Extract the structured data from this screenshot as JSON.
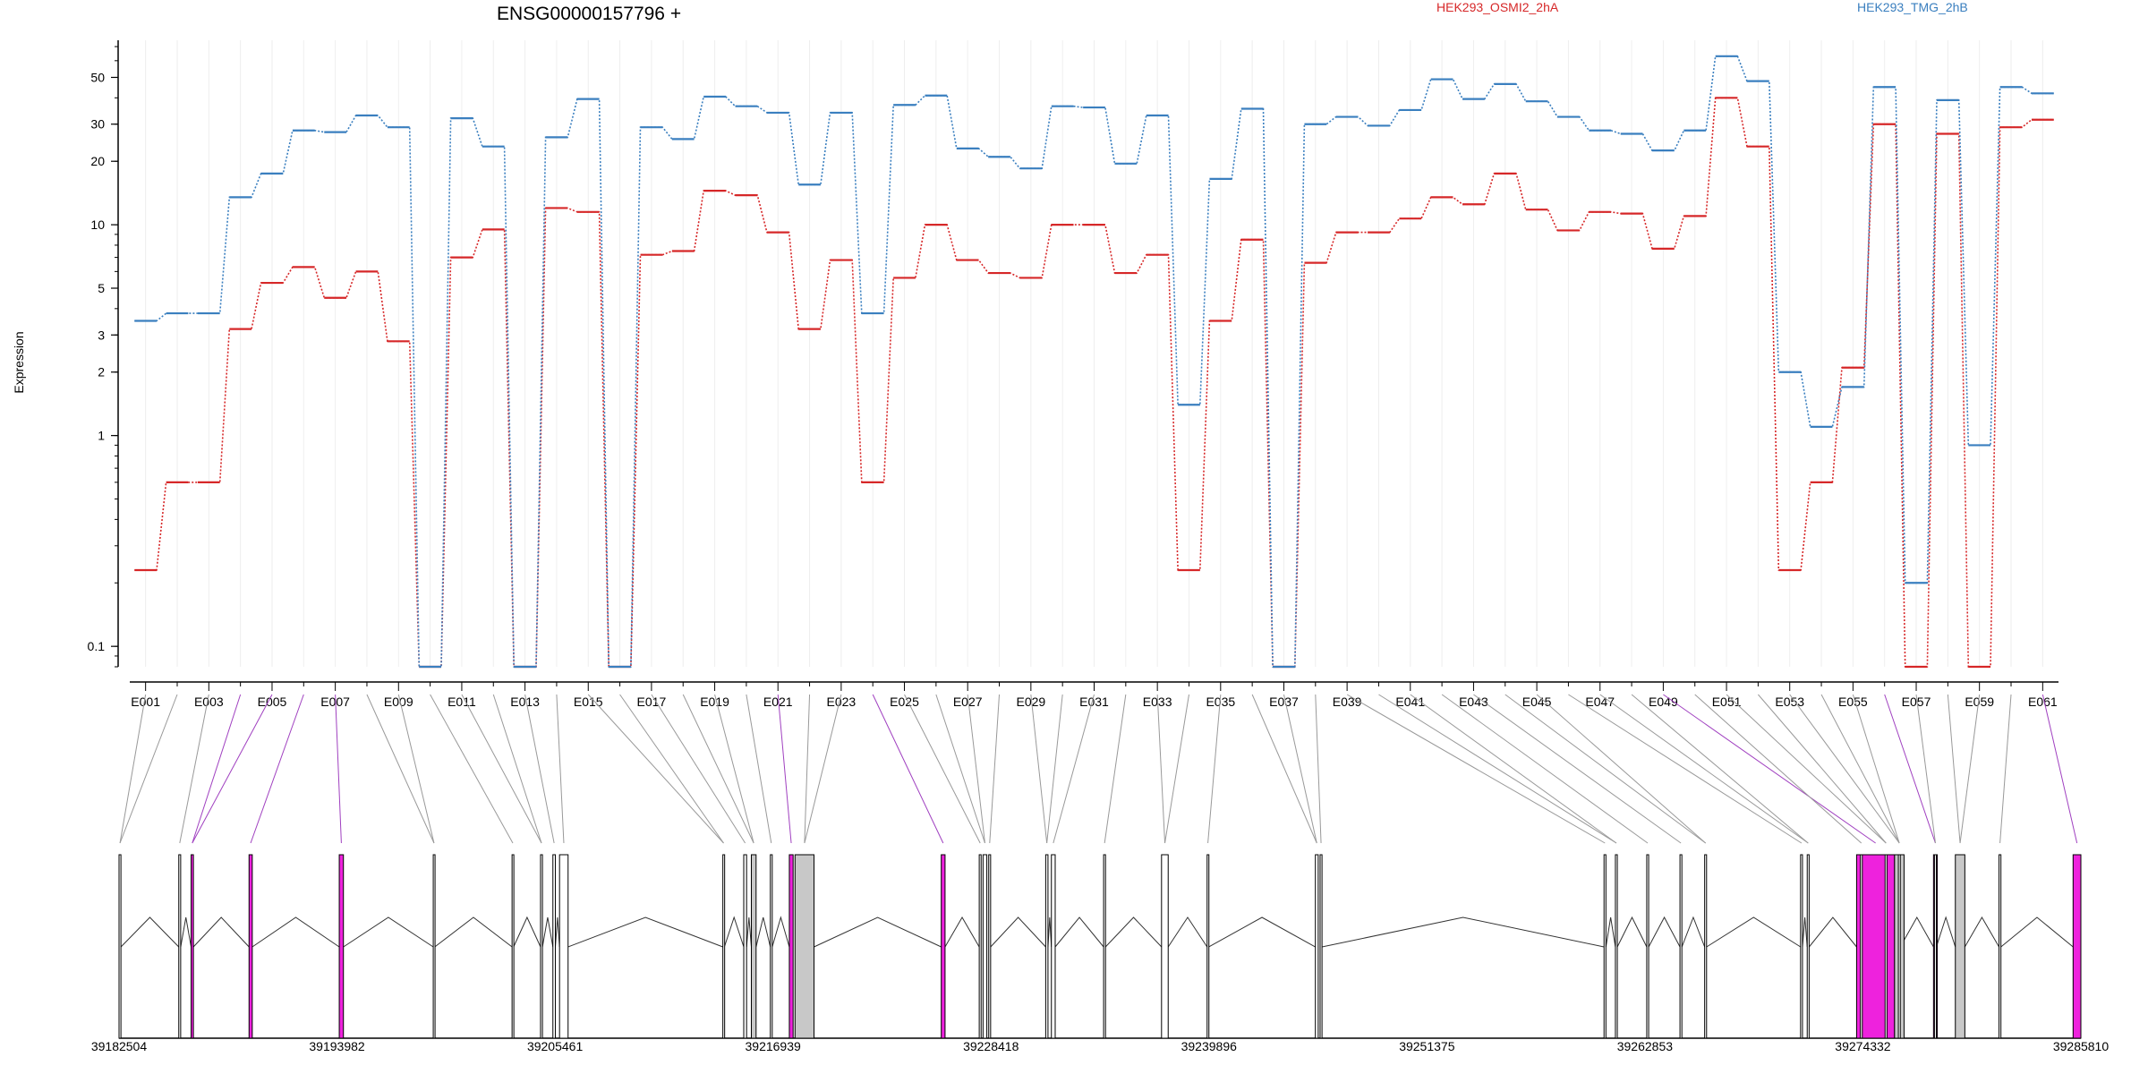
{
  "title": "ENSG00000157796 +",
  "ylabel": "Expression",
  "legend": [
    {
      "name": "HEK293_OSMI2_2hA",
      "color": "#d62728"
    },
    {
      "name": "HEK293_TMG_2hB",
      "color": "#3a7fbf"
    }
  ],
  "colors": {
    "exon_plain": "#ffffff",
    "exon_gray": "#c8c8c8",
    "exon_magenta": "#ee22dd",
    "connector_gray": "#999999",
    "connector_magenta": "#a040c0"
  },
  "chart_data": {
    "type": "line",
    "yscale": "log",
    "ylim": [
      0.08,
      75
    ],
    "yticks": [
      0.1,
      1,
      2,
      3,
      5,
      10,
      20,
      30,
      50
    ],
    "ytick_labels": [
      "0.1",
      "1",
      "2",
      "3",
      "5",
      "10",
      "20",
      "30",
      "50"
    ],
    "grid": "vertical-light",
    "legend_position": "top",
    "categories": [
      "E001",
      "E002",
      "E003",
      "E004",
      "E005",
      "E006",
      "E007",
      "E008",
      "E009",
      "E010",
      "E011",
      "E012",
      "E013",
      "E014",
      "E015",
      "E016",
      "E017",
      "E018",
      "E019",
      "E020",
      "E021",
      "E022",
      "E023",
      "E024",
      "E025",
      "E026",
      "E027",
      "E028",
      "E029",
      "E030",
      "E031",
      "E032",
      "E033",
      "E034",
      "E035",
      "E036",
      "E037",
      "E038",
      "E039",
      "E040",
      "E041",
      "E042",
      "E043",
      "E044",
      "E045",
      "E046",
      "E047",
      "E048",
      "E049",
      "E050",
      "E051",
      "E052",
      "E053",
      "E054",
      "E055",
      "E056",
      "E057",
      "E058",
      "E059",
      "E060",
      "E061"
    ],
    "tick_labels": [
      "E001",
      "E003",
      "E005",
      "E007",
      "E009",
      "E011",
      "E013",
      "E015",
      "E017",
      "E019",
      "E021",
      "E023",
      "E025",
      "E027",
      "E029",
      "E031",
      "E033",
      "E035",
      "E037",
      "E039",
      "E041",
      "E043",
      "E045",
      "E047",
      "E049",
      "E051",
      "E053",
      "E055",
      "E057",
      "E059",
      "E061"
    ],
    "series": [
      {
        "name": "HEK293_OSMI2_2hA",
        "color": "#d62728",
        "values": [
          0.23,
          0.6,
          0.6,
          3.2,
          5.3,
          6.3,
          4.5,
          6.0,
          2.8,
          0.08,
          7.0,
          9.5,
          0.08,
          12.0,
          11.5,
          0.08,
          7.2,
          7.5,
          14.5,
          13.8,
          9.2,
          3.2,
          6.8,
          0.6,
          5.6,
          10.0,
          6.8,
          5.9,
          5.6,
          10.0,
          10.0,
          5.9,
          7.2,
          0.23,
          3.5,
          8.5,
          0.08,
          6.6,
          9.2,
          9.2,
          10.7,
          13.5,
          12.5,
          17.5,
          11.8,
          9.4,
          11.5,
          11.3,
          7.7,
          11.0,
          40.0,
          23.5,
          0.23,
          0.6,
          2.1,
          30.0,
          0.08,
          27.0,
          0.08,
          29.0,
          31.5
        ]
      },
      {
        "name": "HEK293_TMG_2hB",
        "color": "#3a7fbf",
        "values": [
          3.5,
          3.8,
          3.8,
          13.5,
          17.5,
          28.0,
          27.5,
          33.0,
          29.0,
          0.08,
          32.0,
          23.5,
          0.08,
          26.0,
          39.5,
          0.08,
          29.0,
          25.5,
          40.5,
          36.5,
          34.0,
          15.5,
          34.0,
          3.8,
          37.0,
          41.0,
          23.0,
          21.0,
          18.5,
          36.5,
          36.0,
          19.5,
          33.0,
          1.4,
          16.5,
          35.5,
          0.08,
          30.0,
          32.5,
          29.5,
          35.0,
          49.0,
          39.5,
          46.5,
          38.5,
          32.5,
          28.0,
          27.0,
          22.5,
          28.0,
          63.0,
          48.0,
          2.0,
          1.1,
          1.7,
          45.0,
          0.2,
          39.0,
          0.9,
          45.0,
          42.0
        ]
      }
    ]
  },
  "gene_model": {
    "coord_min": 39182504,
    "coord_max": 39285810,
    "coord_labels": [
      "39182504",
      "39193982",
      "39205461",
      "39216939",
      "39228418",
      "39239896",
      "39251375",
      "39262853",
      "39274332",
      "39285810"
    ],
    "exons": [
      [
        39182504,
        39182604,
        "plain"
      ],
      [
        39185650,
        39185750,
        "plain"
      ],
      [
        39186300,
        39186420,
        "magenta"
      ],
      [
        39189350,
        39189520,
        "magenta"
      ],
      [
        39194100,
        39194320,
        "magenta"
      ],
      [
        39199050,
        39199130,
        "plain"
      ],
      [
        39203200,
        39203280,
        "plain"
      ],
      [
        39204700,
        39204800,
        "plain"
      ],
      [
        39205350,
        39205480,
        "plain"
      ],
      [
        39205700,
        39206150,
        "plain"
      ],
      [
        39214300,
        39214380,
        "plain"
      ],
      [
        39215400,
        39215550,
        "plain"
      ],
      [
        39215800,
        39216050,
        "gray"
      ],
      [
        39216800,
        39216900,
        "plain"
      ],
      [
        39217800,
        39218000,
        "magenta"
      ],
      [
        39218100,
        39219100,
        "gray"
      ],
      [
        39225800,
        39226000,
        "magenta"
      ],
      [
        39227800,
        39227900,
        "plain"
      ],
      [
        39228000,
        39228200,
        "plain"
      ],
      [
        39228300,
        39228400,
        "plain"
      ],
      [
        39231300,
        39231420,
        "plain"
      ],
      [
        39231600,
        39231800,
        "plain"
      ],
      [
        39234350,
        39234450,
        "plain"
      ],
      [
        39237400,
        39237750,
        "plain"
      ],
      [
        39239800,
        39239880,
        "plain"
      ],
      [
        39245500,
        39245650,
        "plain"
      ],
      [
        39245750,
        39245850,
        "plain"
      ],
      [
        39260700,
        39260800,
        "plain"
      ],
      [
        39261300,
        39261400,
        "plain"
      ],
      [
        39262950,
        39263050,
        "plain"
      ],
      [
        39264700,
        39264800,
        "plain"
      ],
      [
        39276200,
        39276300,
        "plain"
      ],
      [
        39278100,
        39278200,
        "plain"
      ],
      [
        39281500,
        39281600,
        "plain"
      ],
      [
        39286900,
        39287000,
        "plain"
      ],
      [
        39289200,
        39289300,
        "plain"
      ],
      [
        39295700,
        39295800,
        "plain"
      ],
      [
        39298600,
        39298700,
        "plain"
      ],
      [
        39299400,
        39299500,
        "plain"
      ],
      [
        39313050,
        39313150,
        "plain"
      ],
      [
        39311000,
        39311100,
        "plain"
      ],
      [
        39314500,
        39314600,
        "plain"
      ],
      [
        39271050,
        39271150,
        "plain"
      ],
      [
        39274200,
        39274300,
        "plain"
      ],
      [
        39275500,
        39275600,
        "plain"
      ],
      [
        39271400,
        39271500,
        "plain"
      ],
      [
        39266000,
        39266100,
        "plain"
      ],
      [
        39274000,
        39276000,
        "magenta"
      ],
      [
        39276000,
        39276500,
        "gray"
      ],
      [
        39278050,
        39278250,
        "magenta"
      ],
      [
        39279200,
        39279700,
        "gray"
      ],
      [
        39285400,
        39285810,
        "magenta"
      ]
    ]
  }
}
